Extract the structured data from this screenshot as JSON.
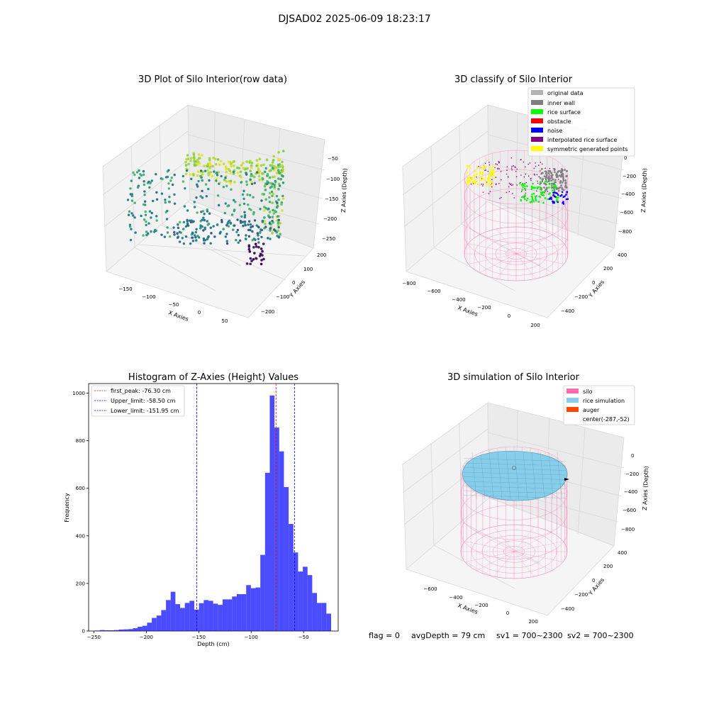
{
  "suptitle": "DJSAD02 2025-06-09 18:23:17",
  "panels": {
    "raw": {
      "title": "3D Plot of Silo Interior(row data)",
      "xlabel": "X Axies",
      "ylabel": "Y Axies",
      "zlabel": "Z Axies (Depth)",
      "xticks": [
        "−150",
        "−100",
        "−50",
        "0",
        "50"
      ],
      "yticks": [
        "200",
        "100",
        "0",
        "−100",
        "−200"
      ],
      "zticks": [
        "−50",
        "−100",
        "−150",
        "−200",
        "−250"
      ]
    },
    "classify": {
      "title": "3D classify of Silo Interior",
      "xlabel": "X Axies",
      "ylabel": "Y Axies",
      "zlabel": "Z Axies (Depth)",
      "xticks": [
        "−800",
        "−600",
        "−400",
        "−200",
        "0",
        "200"
      ],
      "yticks": [
        "400",
        "200",
        "0",
        "−200",
        "−400"
      ],
      "zticks": [
        "0",
        "−200",
        "−400",
        "−600",
        "−800"
      ],
      "legend": [
        {
          "label": "original data",
          "color": "#b3b3b3"
        },
        {
          "label": "inner wall",
          "color": "#808080"
        },
        {
          "label": "rice surface",
          "color": "#00ff00"
        },
        {
          "label": "obstacle",
          "color": "#ff0000"
        },
        {
          "label": "noise",
          "color": "#0000ff"
        },
        {
          "label": "interpolated rice surface",
          "color": "#800080"
        },
        {
          "label": "symmetric generated points",
          "color": "#ffff00"
        }
      ]
    },
    "simulation": {
      "title": "3D simulation of Silo Interior",
      "xlabel": "X Axies",
      "ylabel": "Y Axies",
      "zlabel": "Z Axies (Depth)",
      "xticks": [
        "−600",
        "−400",
        "−200",
        "0",
        "200"
      ],
      "yticks": [
        "400",
        "200",
        "0",
        "−200",
        "−400"
      ],
      "zticks": [
        "0",
        "−200",
        "−400",
        "−600",
        "−800"
      ],
      "legend": [
        {
          "label": "silo",
          "color": "#ff69b4"
        },
        {
          "label": "rice simulation",
          "color": "#87ceeb"
        },
        {
          "label": "auger",
          "color": "#ff4500"
        },
        {
          "label": "center(-287,-52)",
          "color": ""
        }
      ]
    }
  },
  "status": {
    "flag": "flag = 0",
    "avg": "avgDepth = 79 cm",
    "sv1": "sv1 = 700~2300",
    "sv2": "sv2 = 700~2300"
  },
  "chart_data": {
    "type": "bar",
    "title": "Histogram of Z-Axies (Height) Values",
    "xlabel": "Depth (cm)",
    "ylabel": "Frequency",
    "xlim": [
      -255,
      -17
    ],
    "ylim": [
      0,
      1040
    ],
    "xticks": [
      -250,
      -200,
      -150,
      -100,
      -50
    ],
    "yticks": [
      0,
      200,
      400,
      600,
      800,
      1000
    ],
    "bar_color": "#0000ff",
    "bin_width": 4.5,
    "bins": [
      [
        -246.5,
        2
      ],
      [
        -242,
        4
      ],
      [
        -237.5,
        3
      ],
      [
        -233,
        3
      ],
      [
        -228.5,
        4
      ],
      [
        -224,
        6
      ],
      [
        -219.5,
        7
      ],
      [
        -215,
        8
      ],
      [
        -210.5,
        12
      ],
      [
        -206,
        18
      ],
      [
        -201.5,
        22
      ],
      [
        -197,
        35
      ],
      [
        -192.5,
        55
      ],
      [
        -188,
        65
      ],
      [
        -183.5,
        88
      ],
      [
        -179,
        130
      ],
      [
        -174.5,
        165
      ],
      [
        -170,
        113
      ],
      [
        -165.5,
        97
      ],
      [
        -161,
        118
      ],
      [
        -156.5,
        127
      ],
      [
        -152,
        90
      ],
      [
        -147.5,
        117
      ],
      [
        -143,
        130
      ],
      [
        -138.5,
        127
      ],
      [
        -134,
        115
      ],
      [
        -129.5,
        110
      ],
      [
        -125,
        133
      ],
      [
        -120.5,
        133
      ],
      [
        -116,
        145
      ],
      [
        -111.5,
        155
      ],
      [
        -107,
        155
      ],
      [
        -102.5,
        193
      ],
      [
        -98,
        180
      ],
      [
        -93.5,
        183
      ],
      [
        -89,
        320
      ],
      [
        -84.5,
        665
      ],
      [
        -80,
        990
      ],
      [
        -75.5,
        855
      ],
      [
        -71,
        755
      ],
      [
        -66.5,
        605
      ],
      [
        -62,
        450
      ],
      [
        -57.5,
        330
      ],
      [
        -53,
        250
      ],
      [
        -48.5,
        270
      ],
      [
        -44,
        235
      ],
      [
        -39.5,
        160
      ],
      [
        -35,
        118
      ],
      [
        -30.5,
        118
      ],
      [
        -26,
        73
      ]
    ],
    "vlines": [
      {
        "name": "first_peak",
        "label": "first_peak: -76.30 cm",
        "x": -76.3,
        "color": "#ff0000"
      },
      {
        "name": "upper-limit",
        "label": "Upper_limit: -58.50 cm",
        "x": -58.5,
        "color": "#0000ff"
      },
      {
        "name": "lower-limit",
        "label": "Lower_limit: -151.95 cm",
        "x": -151.95,
        "color": "#0000ff"
      }
    ],
    "legend": "top-left",
    "grid": false
  }
}
